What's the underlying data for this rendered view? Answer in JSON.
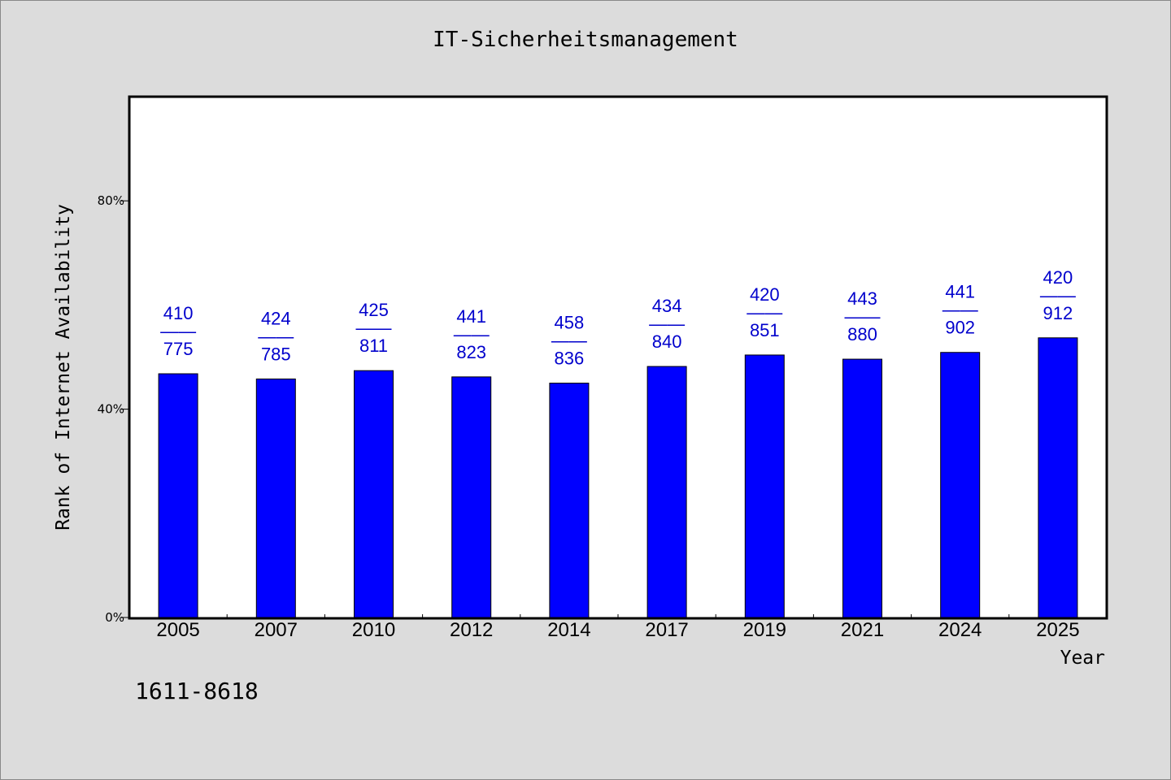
{
  "title": "IT-Sicherheitsmanagement",
  "footer_code": "1611-8618",
  "chart_data": {
    "type": "bar",
    "title": "IT-Sicherheitsmanagement",
    "xlabel": "Year",
    "ylabel": "Rank of Internet Availability",
    "categories": [
      "2005",
      "2007",
      "2010",
      "2012",
      "2014",
      "2017",
      "2019",
      "2021",
      "2024",
      "2025"
    ],
    "values": [
      46.8,
      45.8,
      47.4,
      46.2,
      45.0,
      48.2,
      50.4,
      49.6,
      50.9,
      53.7
    ],
    "data_labels": [
      {
        "top": "410",
        "sep": "——",
        "bottom": "775"
      },
      {
        "top": "424",
        "sep": "——",
        "bottom": "785"
      },
      {
        "top": "425",
        "sep": "——",
        "bottom": "811"
      },
      {
        "top": "441",
        "sep": "——",
        "bottom": "823"
      },
      {
        "top": "458",
        "sep": "——",
        "bottom": "836"
      },
      {
        "top": "434",
        "sep": "——",
        "bottom": "840"
      },
      {
        "top": "420",
        "sep": "——",
        "bottom": "851"
      },
      {
        "top": "443",
        "sep": "——",
        "bottom": "880"
      },
      {
        "top": "441",
        "sep": "——",
        "bottom": "902"
      },
      {
        "top": "420",
        "sep": "——",
        "bottom": "912"
      }
    ],
    "ylim": [
      0,
      100
    ],
    "yticks": [
      0,
      40,
      80
    ],
    "ytick_labels": [
      "0%",
      "40%",
      "80%"
    ],
    "grid": false,
    "colors": {
      "bar": "#0000ff",
      "bar_border": "#000000",
      "label": "#0000cc",
      "plot_bg": "#ffffff",
      "page_bg": "#dcdcdc"
    }
  }
}
